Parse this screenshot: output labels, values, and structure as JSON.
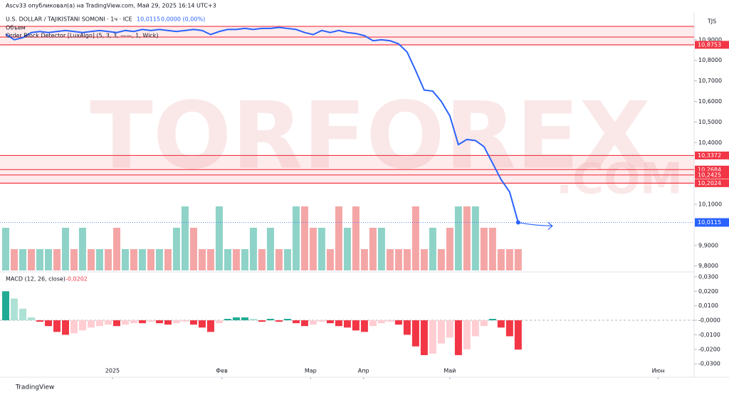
{
  "header": "Ascv33 опубликовал(а) на TradingView.com, Май 29, 2025 16:14 UTC+3",
  "footer": "TradingView",
  "watermark": [
    "TORFOREX",
    ".COM"
  ],
  "chart_data": [
    {
      "type": "line",
      "title": "U.S. DOLLAR / TAJIKISTANI SOMONI · 1ч · ICE",
      "last": "10,0115",
      "change": "0,0000 (0,00%)",
      "volume_title": "Объем",
      "indicator": "Order Block Detector [LuxAlgo] (5, 3, 3, ——, 1, Wick)",
      "currency": "TJS",
      "color": "#2962ff",
      "values": [
        10.927,
        10.9,
        10.91,
        10.935,
        10.94,
        10.935,
        10.94,
        10.945,
        10.94,
        10.935,
        10.94,
        10.945,
        10.94,
        10.935,
        10.945,
        10.94,
        10.95,
        10.945,
        10.95,
        10.945,
        10.94,
        10.945,
        10.95,
        10.945,
        10.925,
        10.94,
        10.95,
        10.95,
        10.955,
        10.95,
        10.955,
        10.955,
        10.96,
        10.955,
        10.95,
        10.935,
        10.925,
        10.945,
        10.935,
        10.945,
        10.935,
        10.93,
        10.92,
        10.895,
        10.9,
        10.895,
        10.88,
        10.84,
        10.75,
        10.655,
        10.65,
        10.6,
        10.53,
        10.39,
        10.415,
        10.41,
        10.38,
        10.3,
        10.22,
        10.16,
        10.0115
      ],
      "volume": {
        "values": [
          2,
          1,
          1,
          1,
          1,
          1,
          1,
          2,
          1,
          2,
          1,
          1,
          1,
          2,
          1,
          1,
          1,
          1,
          1,
          1,
          2,
          3,
          2,
          1,
          1,
          3,
          1,
          1,
          1,
          2,
          1,
          2,
          1,
          1,
          3,
          3,
          2,
          2,
          1,
          3,
          2,
          3,
          1,
          2,
          2,
          1,
          1,
          1,
          3,
          1,
          2,
          1,
          2,
          3,
          3,
          3,
          2,
          2,
          1,
          1,
          1
        ],
        "colors": [
          "#8fd3c8",
          "#f4a6a6",
          "#8fd3c8",
          "#f4a6a6",
          "#8fd3c8",
          "#8fd3c8",
          "#f4a6a6",
          "#8fd3c8",
          "#f4a6a6",
          "#8fd3c8",
          "#f4a6a6",
          "#8fd3c8",
          "#f4a6a6",
          "#f4a6a6",
          "#8fd3c8",
          "#f4a6a6",
          "#8fd3c8",
          "#f4a6a6",
          "#8fd3c8",
          "#f4a6a6",
          "#8fd3c8",
          "#8fd3c8",
          "#f4a6a6",
          "#f4a6a6",
          "#f4a6a6",
          "#8fd3c8",
          "#8fd3c8",
          "#f4a6a6",
          "#8fd3c8",
          "#8fd3c8",
          "#f4a6a6",
          "#8fd3c8",
          "#f4a6a6",
          "#8fd3c8",
          "#8fd3c8",
          "#f4a6a6",
          "#f4a6a6",
          "#8fd3c8",
          "#f4a6a6",
          "#f4a6a6",
          "#8fd3c8",
          "#f4a6a6",
          "#f4a6a6",
          "#f4a6a6",
          "#8fd3c8",
          "#f4a6a6",
          "#f4a6a6",
          "#f4a6a6",
          "#f4a6a6",
          "#f4a6a6",
          "#8fd3c8",
          "#f4a6a6",
          "#f4a6a6",
          "#8fd3c8",
          "#f4a6a6",
          "#8fd3c8",
          "#f4a6a6",
          "#f4a6a6",
          "#f4a6a6",
          "#f4a6a6",
          "#f4a6a6"
        ]
      },
      "xlim": [
        0,
        80.6
      ],
      "xticks": [
        {
          "value": 12.5,
          "label": "2025"
        },
        {
          "value": 25.3,
          "label": "Фев"
        },
        {
          "value": 35.7,
          "label": "Мар"
        },
        {
          "value": 41.9,
          "label": "Апр"
        },
        {
          "value": 52,
          "label": "Май"
        },
        {
          "value": 76.4,
          "label": "Июн"
        }
      ],
      "ylim": [
        9.778,
        11.024
      ],
      "yticks": [
        {
          "value": 10.9,
          "label": "10,9000"
        },
        {
          "value": 10.8,
          "label": "10,8000"
        },
        {
          "value": 10.7,
          "label": "10,7000"
        },
        {
          "value": 10.6,
          "label": "10,6000"
        },
        {
          "value": 10.5,
          "label": "10,5000"
        },
        {
          "value": 10.4,
          "label": "10,4000"
        },
        {
          "value": 10.1,
          "label": "10,1000"
        },
        {
          "value": 9.9,
          "label": "9,9000"
        },
        {
          "value": 9.8,
          "label": "9,8000"
        }
      ],
      "levels": [
        {
          "value": 10.8753,
          "label": "10,8753"
        },
        {
          "value": 10.3372,
          "label": "10,3372"
        },
        {
          "value": 10.2684,
          "label": "10,2684"
        },
        {
          "value": 10.2425,
          "label": "10,2425"
        },
        {
          "value": 10.2024,
          "label": "10,2024"
        }
      ],
      "zones": [
        {
          "from": 10.8753,
          "to": 10.965
        },
        {
          "from": 10.2024,
          "to": 10.3372
        }
      ],
      "other_lines": [
        10.965,
        10.913
      ],
      "level_color": "#f23645"
    },
    {
      "type": "histogram",
      "title": "MACD (12, 26, close)",
      "last": "-0,0202",
      "values": [
        0.02,
        0.015,
        0.008,
        0.002,
        -0.001,
        -0.004,
        -0.008,
        -0.01,
        -0.009,
        -0.007,
        -0.005,
        -0.004,
        -0.003,
        -0.004,
        -0.003,
        -0.002,
        -0.002,
        -0.001,
        -0.002,
        -0.003,
        -0.002,
        -0.001,
        -0.003,
        -0.005,
        -0.008,
        -0.002,
        0.001,
        0.002,
        0.002,
        0.001,
        -0.001,
        0.001,
        -0.001,
        0.001,
        -0.002,
        -0.004,
        -0.003,
        -0.001,
        -0.002,
        -0.004,
        -0.005,
        -0.007,
        -0.008,
        -0.004,
        -0.002,
        -0.001,
        -0.003,
        -0.01,
        -0.018,
        -0.024,
        -0.023,
        -0.016,
        -0.012,
        -0.024,
        -0.02,
        -0.011,
        -0.004,
        0.001,
        -0.005,
        -0.011,
        -0.0202
      ],
      "colors": {
        "up_rising": "#22ab94",
        "up_falling": "#aee1d6",
        "down_falling": "#f23645",
        "down_rising": "#ffcdd2"
      },
      "xlim": [
        0,
        80.6
      ],
      "ylim": [
        -0.0353,
        0.0319
      ],
      "yticks": [
        {
          "value": 0.03,
          "label": "0,0300"
        },
        {
          "value": 0.02,
          "label": "0,0200"
        },
        {
          "value": 0.01,
          "label": "0,0100"
        },
        {
          "value": 0,
          "label": "-0,0000"
        },
        {
          "value": -0.01,
          "label": "-0,0100"
        },
        {
          "value": -0.02,
          "label": "-0,0200"
        },
        {
          "value": -0.03,
          "label": "-0,0300"
        }
      ]
    }
  ]
}
